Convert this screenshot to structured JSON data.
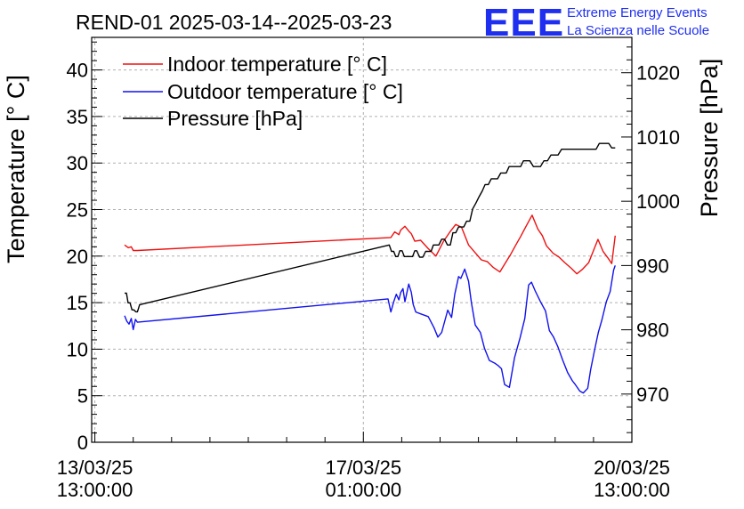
{
  "chart_data": {
    "type": "line",
    "title": "REND-01 2025-03-14--2025-03-23",
    "ylabel": "Temperature [° C]",
    "y2label": "Pressure [hPa]",
    "ylim": [
      0,
      43.5
    ],
    "y2lim": [
      962.5,
      1025.5
    ],
    "yticks": [
      0,
      5,
      10,
      15,
      20,
      25,
      30,
      35,
      40
    ],
    "y2ticks": [
      970,
      980,
      990,
      1000,
      1010,
      1020
    ],
    "xlim_hours": [
      -1,
      168
    ],
    "xticks": [
      {
        "hours": 0,
        "label": "13/03/25",
        "sublabel": "13:00:00"
      },
      {
        "hours": 84,
        "label": "17/03/25",
        "sublabel": "01:00:00"
      },
      {
        "hours": 168,
        "label": "20/03/25",
        "sublabel": "13:00:00"
      }
    ],
    "x_unit": "hours since 13/03/25 13:00:00",
    "grid": true,
    "legend_position": "top-left",
    "legend": [
      {
        "label": "Indoor temperature [° C]",
        "color": "#ee1111"
      },
      {
        "label": "Outdoor temperature [° C]",
        "color": "#1111ee"
      },
      {
        "label": "Pressure [hPa]",
        "color": "#000000"
      }
    ],
    "series": [
      {
        "name": "Indoor temperature [° C]",
        "axis": "left",
        "color": "#ee1111",
        "x": [
          9.3,
          10.5,
          11.4,
          12.0,
          13.3,
          92.6,
          93.8,
          95.1,
          95.7,
          97.0,
          98.2,
          99.0,
          100.1,
          101.9,
          104.3,
          106.7,
          109.1,
          111.1,
          112.9,
          114.7,
          116.9,
          118.9,
          120.9,
          122.8,
          124.6,
          126.7,
          128.5,
          130.1,
          131.7,
          133.2,
          134.9,
          136.8,
          138.6,
          140.0,
          141.3,
          143.4,
          145.2,
          147.0,
          149.0,
          150.8,
          152.6,
          154.5,
          156.0,
          157.4,
          159.0,
          160.5,
          161.7,
          162.8
        ],
        "values": [
          21.2,
          20.9,
          21.0,
          20.6,
          20.6,
          22.0,
          22.6,
          22.3,
          22.8,
          23.2,
          22.7,
          22.4,
          21.6,
          21.7,
          20.8,
          20.0,
          21.6,
          22.6,
          23.4,
          23.1,
          21.2,
          20.4,
          19.6,
          19.4,
          18.8,
          18.3,
          19.3,
          20.2,
          21.2,
          22.1,
          23.2,
          24.4,
          22.9,
          22.2,
          21.1,
          20.3,
          19.9,
          19.3,
          18.7,
          18.1,
          18.6,
          19.3,
          20.6,
          21.8,
          20.5,
          19.8,
          19.2,
          22.2
        ]
      },
      {
        "name": "Outdoor temperature [° C]",
        "axis": "left",
        "color": "#1111ee",
        "x": [
          9.3,
          10.0,
          10.7,
          11.4,
          12.0,
          12.7,
          13.3,
          91.7,
          92.6,
          93.5,
          94.3,
          95.1,
          95.7,
          96.4,
          97.0,
          98.2,
          99.0,
          99.6,
          100.4,
          101.9,
          104.3,
          106.1,
          107.3,
          108.5,
          110.4,
          111.6,
          112.6,
          113.8,
          114.5,
          115.7,
          116.9,
          117.8,
          119.0,
          120.6,
          121.9,
          123.4,
          125.1,
          126.3,
          127.2,
          128.2,
          129.7,
          131.3,
          133.0,
          134.5,
          135.7,
          136.6,
          137.7,
          139.4,
          141.0,
          142.2,
          143.5,
          144.8,
          146.4,
          147.9,
          149.4,
          150.3,
          151.7,
          152.8,
          154.2,
          155.1,
          156.4,
          157.5,
          158.6,
          160.0,
          161.2,
          162.3,
          162.8
        ],
        "values": [
          13.6,
          13.0,
          12.7,
          13.3,
          12.1,
          13.2,
          12.9,
          15.4,
          14.0,
          15.1,
          15.9,
          15.3,
          16.1,
          16.5,
          15.1,
          17.0,
          16.1,
          14.8,
          14.0,
          13.8,
          13.5,
          12.3,
          11.3,
          11.8,
          14.2,
          13.4,
          15.9,
          17.8,
          17.6,
          18.6,
          17.3,
          15.0,
          12.6,
          11.8,
          10.1,
          8.8,
          8.5,
          8.2,
          7.9,
          6.2,
          5.9,
          9.1,
          11.2,
          13.3,
          16.9,
          17.2,
          16.3,
          15.1,
          14.1,
          12.0,
          11.3,
          10.3,
          8.8,
          7.5,
          6.6,
          6.2,
          5.5,
          5.3,
          5.8,
          7.8,
          10.0,
          11.8,
          13.1,
          15.1,
          16.2,
          18.5,
          19.0
        ]
      },
      {
        "name": "Pressure [hPa]",
        "axis": "right",
        "color": "#000000",
        "x": [
          9.3,
          9.9,
          10.4,
          11.0,
          11.6,
          12.2,
          12.8,
          13.3,
          14.0,
          92.1,
          92.8,
          93.5,
          94.1,
          94.8,
          95.4,
          96.1,
          96.8,
          97.5,
          98.1,
          98.8,
          99.4,
          100.1,
          100.7,
          101.6,
          102.6,
          103.5,
          104.4,
          105.2,
          105.9,
          106.6,
          107.6,
          108.5,
          109.4,
          110.3,
          111.2,
          112.0,
          112.9,
          113.8,
          114.6,
          115.4,
          116.3,
          117.3,
          118.2,
          119.2,
          120.2,
          121.2,
          122.1,
          123.1,
          124.0,
          125.0,
          126.0,
          127.0,
          127.8,
          128.7,
          129.6,
          130.5,
          131.4,
          132.3,
          133.2,
          134.1,
          135.0,
          136.1,
          137.2,
          138.3,
          139.4,
          140.5,
          141.6,
          142.7,
          143.8,
          144.9,
          146.0,
          147.1,
          148.2,
          149.3,
          150.4,
          151.5,
          152.6,
          153.8,
          154.8,
          155.8,
          156.8,
          157.8,
          158.8,
          159.8,
          160.8,
          161.7,
          162.8
        ],
        "values": [
          985.7,
          985.7,
          984.2,
          984.2,
          983.1,
          983.1,
          982.8,
          982.8,
          983.9,
          993.2,
          992.2,
          992.2,
          991.4,
          991.4,
          992.3,
          992.3,
          991.4,
          991.4,
          991.4,
          991.4,
          991.4,
          992.3,
          992.3,
          991.3,
          991.3,
          992.2,
          992.2,
          992.2,
          993.2,
          993.2,
          993.2,
          994.1,
          994.1,
          993.2,
          993.2,
          995.1,
          995.1,
          996.0,
          996.0,
          996.0,
          996.9,
          996.9,
          998.8,
          999.7,
          1000.7,
          1001.6,
          1002.6,
          1002.6,
          1003.5,
          1003.5,
          1003.5,
          1004.4,
          1004.4,
          1004.4,
          1005.4,
          1005.4,
          1005.4,
          1005.4,
          1005.4,
          1006.3,
          1006.3,
          1006.3,
          1005.4,
          1005.4,
          1005.4,
          1006.3,
          1006.3,
          1007.2,
          1007.2,
          1007.2,
          1008.1,
          1008.1,
          1008.1,
          1008.1,
          1008.1,
          1008.1,
          1008.1,
          1008.1,
          1008.1,
          1008.1,
          1008.1,
          1009.0,
          1009.0,
          1009.0,
          1009.0,
          1008.3,
          1008.3
        ]
      }
    ]
  },
  "logo": {
    "mark": "EEE",
    "line1": "Extreme Energy Events",
    "line2": "La Scienza nelle Scuole",
    "color": "#1f2ff0"
  }
}
